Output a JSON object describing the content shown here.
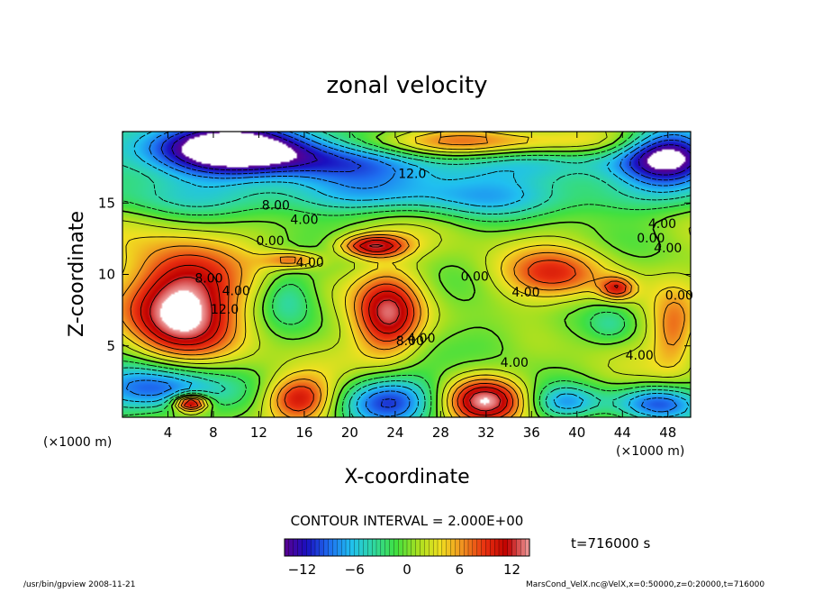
{
  "chart_data": {
    "type": "heatmap",
    "title": "zonal velocity",
    "xlabel": "X-coordinate",
    "ylabel": "Z-coordinate",
    "x_unit": "(×1000 m)",
    "y_unit": "(×1000 m)",
    "xlim": [
      0,
      50
    ],
    "ylim": [
      0,
      20
    ],
    "x_ticks": [
      4,
      8,
      12,
      16,
      20,
      24,
      28,
      32,
      36,
      40,
      44,
      48
    ],
    "y_ticks": [
      5,
      10,
      15
    ],
    "contour_interval_text": "CONTOUR INTERVAL = 2.000E+00",
    "time_text": "t=716000 s",
    "colorbar": {
      "range": [
        -14,
        14
      ],
      "ticks": [
        -12,
        -6,
        0,
        6,
        12
      ],
      "colormap": "rainbow",
      "colors": [
        "#5a0090",
        "#1a10c0",
        "#1e6ef0",
        "#20c0f0",
        "#30d8a0",
        "#40e040",
        "#a8e020",
        "#f0e020",
        "#f09020",
        "#e83010",
        "#c00000",
        "#f0a0a0"
      ]
    },
    "contour_labels": [
      {
        "text": "12.0",
        "x": 25.5,
        "z": 17.0
      },
      {
        "text": "8.00",
        "x": 13.5,
        "z": 14.8
      },
      {
        "text": "4.00",
        "x": 16.0,
        "z": 13.8
      },
      {
        "text": "0.00",
        "x": 13.0,
        "z": 12.3
      },
      {
        "text": "4.00",
        "x": 16.5,
        "z": 10.8
      },
      {
        "text": "8.00",
        "x": 7.6,
        "z": 9.7
      },
      {
        "text": "4.00",
        "x": 10.0,
        "z": 8.8
      },
      {
        "text": "12.0",
        "x": 9.0,
        "z": 7.5
      },
      {
        "text": "0.00",
        "x": 31.0,
        "z": 9.8
      },
      {
        "text": "4.00",
        "x": 35.5,
        "z": 8.7
      },
      {
        "text": "8.00",
        "x": 25.3,
        "z": 5.3
      },
      {
        "text": "4.00",
        "x": 26.3,
        "z": 5.5
      },
      {
        "text": "4.00",
        "x": 34.5,
        "z": 3.8
      },
      {
        "text": "4.00",
        "x": 45.5,
        "z": 4.3
      },
      {
        "text": "4.00",
        "x": 47.5,
        "z": 13.5
      },
      {
        "text": "0.00",
        "x": 46.5,
        "z": 12.5
      },
      {
        "text": "4.00",
        "x": 48.0,
        "z": 11.8
      },
      {
        "text": "0.00",
        "x": 49.0,
        "z": 8.5
      }
    ],
    "blobs": [
      {
        "x": 25,
        "z": 18.5,
        "rx": 30,
        "rz": 2.5,
        "v": -10
      },
      {
        "x": 10,
        "z": 18.8,
        "rx": 8,
        "rz": 1.8,
        "v": -13
      },
      {
        "x": 48,
        "z": 18.5,
        "rx": 4,
        "rz": 2.0,
        "v": -12
      },
      {
        "x": 32,
        "z": 19.3,
        "rx": 14,
        "rz": 1.2,
        "v": 14
      },
      {
        "x": 25,
        "z": 15.3,
        "rx": 30,
        "rz": 1.4,
        "v": -5
      },
      {
        "x": 22,
        "z": 12.0,
        "rx": 3.0,
        "rz": 0.8,
        "v": 11
      },
      {
        "x": 15,
        "z": 11.0,
        "rx": 2.5,
        "rz": 0.6,
        "v": 7
      },
      {
        "x": 5,
        "z": 8.0,
        "rx": 5,
        "rz": 3.8,
        "v": 15
      },
      {
        "x": 14.5,
        "z": 8.5,
        "rx": 2.3,
        "rz": 2.0,
        "v": -4
      },
      {
        "x": 23.5,
        "z": 7.0,
        "rx": 3.0,
        "rz": 3.0,
        "v": 11
      },
      {
        "x": 32.5,
        "z": 5.5,
        "rx": 3.5,
        "rz": 2.0,
        "v": -3
      },
      {
        "x": 38,
        "z": 10.0,
        "rx": 5.0,
        "rz": 1.8,
        "v": 7
      },
      {
        "x": 43.0,
        "z": 6.5,
        "rx": 2.0,
        "rz": 1.3,
        "v": -3
      },
      {
        "x": 48.5,
        "z": 6.0,
        "rx": 2.0,
        "rz": 2.5,
        "v": 6
      },
      {
        "x": 43.5,
        "z": 9.0,
        "rx": 1.5,
        "rz": 0.8,
        "v": 8
      },
      {
        "x": 3,
        "z": 2.0,
        "rx": 6,
        "rz": 1.8,
        "v": -12
      },
      {
        "x": 6,
        "z": 1.0,
        "rx": 1.5,
        "rz": 0.6,
        "v": 15
      },
      {
        "x": 15.5,
        "z": 1.3,
        "rx": 3.0,
        "rz": 1.6,
        "v": 10
      },
      {
        "x": 23.5,
        "z": 1.2,
        "rx": 4.5,
        "rz": 1.8,
        "v": -11
      },
      {
        "x": 32,
        "z": 1.2,
        "rx": 3.5,
        "rz": 1.6,
        "v": 12
      },
      {
        "x": 39,
        "z": 1.0,
        "rx": 3.0,
        "rz": 1.2,
        "v": -7
      },
      {
        "x": 47,
        "z": 1.0,
        "rx": 4.0,
        "rz": 1.3,
        "v": -10
      }
    ]
  },
  "footer": {
    "left": "/usr/bin/gpview   2008-11-21",
    "right": "MarsCond_VelX.nc@VelX,x=0:50000,z=0:20000,t=716000"
  }
}
